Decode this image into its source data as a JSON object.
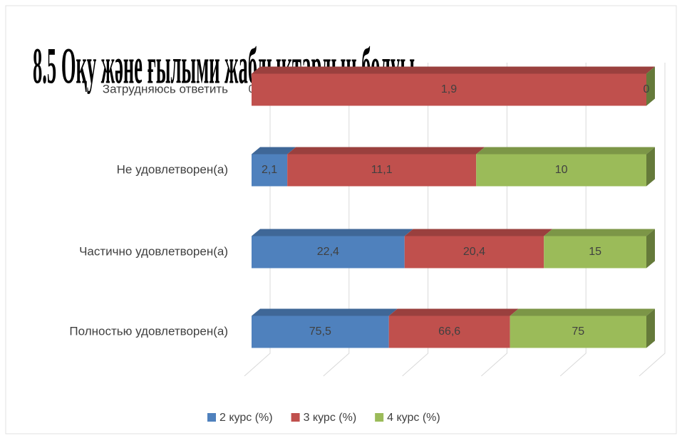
{
  "chart_data": {
    "type": "bar",
    "orientation": "horizontal",
    "stacked": "percent",
    "title": "8.5 Оқу және ғылыми жабдықтардың болуы",
    "categories": [
      "Затрудняюсь ответить",
      "Не удовлетворен(а)",
      "Частично удовлетворен(а)",
      "Полностью удовлетворен(а)"
    ],
    "series": [
      {
        "name": "2 курс (%)",
        "color": "#4f81bd",
        "values": [
          0,
          2.1,
          22.4,
          75.5
        ],
        "value_labels": [
          "0",
          "2,1",
          "22,4",
          "75,5"
        ]
      },
      {
        "name": "3 курс (%)",
        "color": "#c0504d",
        "values": [
          1.9,
          11.1,
          20.4,
          66.6
        ],
        "value_labels": [
          "1,9",
          "11,1",
          "20,4",
          "66,6"
        ]
      },
      {
        "name": "4 курс (%)",
        "color": "#9bbb59",
        "values": [
          0,
          10,
          15,
          75
        ],
        "value_labels": [
          "0",
          "10",
          "15",
          "75"
        ]
      }
    ],
    "xlim": [
      0,
      100
    ],
    "xticks": [
      0,
      20,
      40,
      60,
      80,
      100
    ],
    "grid": true,
    "legend": "bottom"
  }
}
